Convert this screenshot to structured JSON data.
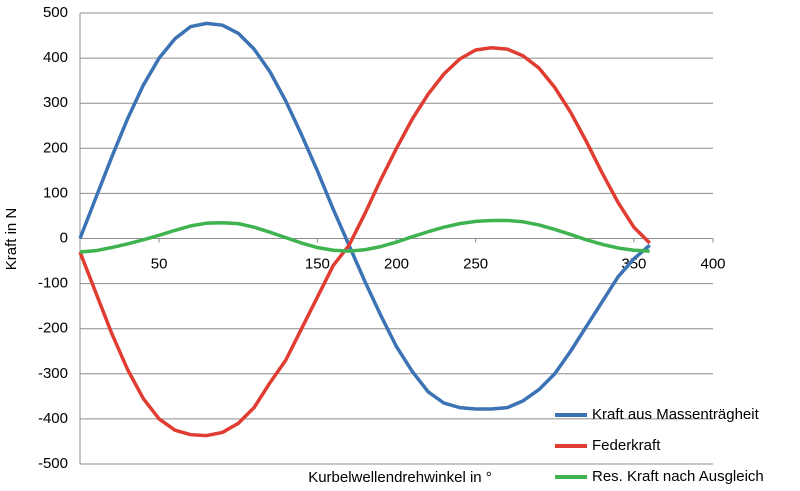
{
  "chart_data": {
    "type": "line",
    "y_label": "Kraft in N",
    "x_label": "Kurbelwellendrehwinkel in °",
    "x": [
      0,
      10,
      20,
      30,
      40,
      50,
      60,
      70,
      80,
      90,
      100,
      110,
      120,
      130,
      140,
      150,
      160,
      170,
      180,
      190,
      200,
      210,
      220,
      230,
      240,
      250,
      260,
      270,
      280,
      290,
      300,
      310,
      320,
      330,
      340,
      350,
      360
    ],
    "series": [
      {
        "name": "Kraft aus Massenträgheit",
        "color": "#3b73b5",
        "values": [
          0,
          90,
          180,
          265,
          340,
          400,
          443,
          470,
          477,
          473,
          455,
          420,
          370,
          305,
          230,
          150,
          65,
          -15,
          -95,
          -170,
          -240,
          -295,
          -340,
          -365,
          -375,
          -378,
          -378,
          -375,
          -360,
          -335,
          -300,
          -250,
          -195,
          -140,
          -85,
          -45,
          -15
        ]
      },
      {
        "name": "Federkraft",
        "color": "#e03c31",
        "values": [
          -30,
          -120,
          -210,
          -290,
          -355,
          -400,
          -425,
          -435,
          -437,
          -430,
          -410,
          -375,
          -320,
          -270,
          -200,
          -130,
          -60,
          -15,
          55,
          130,
          200,
          265,
          320,
          365,
          398,
          418,
          423,
          420,
          405,
          378,
          335,
          280,
          215,
          145,
          80,
          25,
          -10
        ]
      },
      {
        "name": "Res. Kraft nach Ausgleich",
        "color": "#3fb34f",
        "values": [
          -30,
          -27,
          -20,
          -12,
          -3,
          7,
          18,
          28,
          34,
          35,
          33,
          25,
          14,
          2,
          -10,
          -20,
          -26,
          -28,
          -25,
          -18,
          -8,
          4,
          15,
          25,
          33,
          38,
          40,
          40,
          37,
          30,
          20,
          9,
          -3,
          -13,
          -21,
          -26,
          -28
        ]
      }
    ],
    "xlim": [
      0,
      400
    ],
    "xticks": [
      50,
      150,
      200,
      250,
      350,
      400
    ],
    "ylim": [
      -500,
      500
    ],
    "yticks": [
      500,
      400,
      300,
      200,
      100,
      0,
      -100,
      -200,
      -300,
      -400,
      -500
    ],
    "grid": true,
    "legend": "lower right"
  }
}
